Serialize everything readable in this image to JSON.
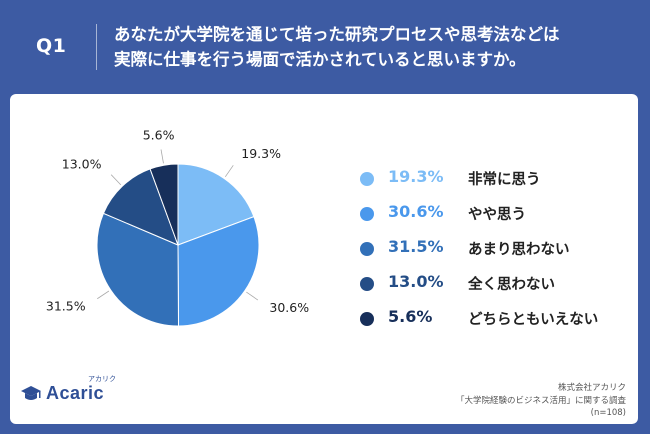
{
  "header": {
    "question_number": "Q1",
    "question_line1": "あなたが大学院を通じて培った研究プロセスや思考法などは",
    "question_line2": "実際に仕事を行う場面で活かされていると思いますか。"
  },
  "chart_data": {
    "type": "pie",
    "slices": [
      {
        "label": "非常に思う",
        "value": 19.3,
        "value_label": "19.3%",
        "color": "#7cbcf6"
      },
      {
        "label": "やや思う",
        "value": 30.6,
        "value_label": "30.6%",
        "color": "#4a98ec"
      },
      {
        "label": "あまり思わない",
        "value": 31.5,
        "value_label": "31.5%",
        "color": "#3270b8"
      },
      {
        "label": "全く思わない",
        "value": 13.0,
        "value_label": "13.0%",
        "color": "#244d86"
      },
      {
        "label": "どちらともいえない",
        "value": 5.6,
        "value_label": "5.6%",
        "color": "#172f5a"
      }
    ],
    "legend_placement": "right"
  },
  "footer": {
    "logo_text": "Acaric",
    "logo_kana": "アカリク",
    "source_line1": "株式会社アカリク",
    "source_line2": "「大学院経験のビジネス活用」に関する調査",
    "source_line3": "(n=108)"
  }
}
